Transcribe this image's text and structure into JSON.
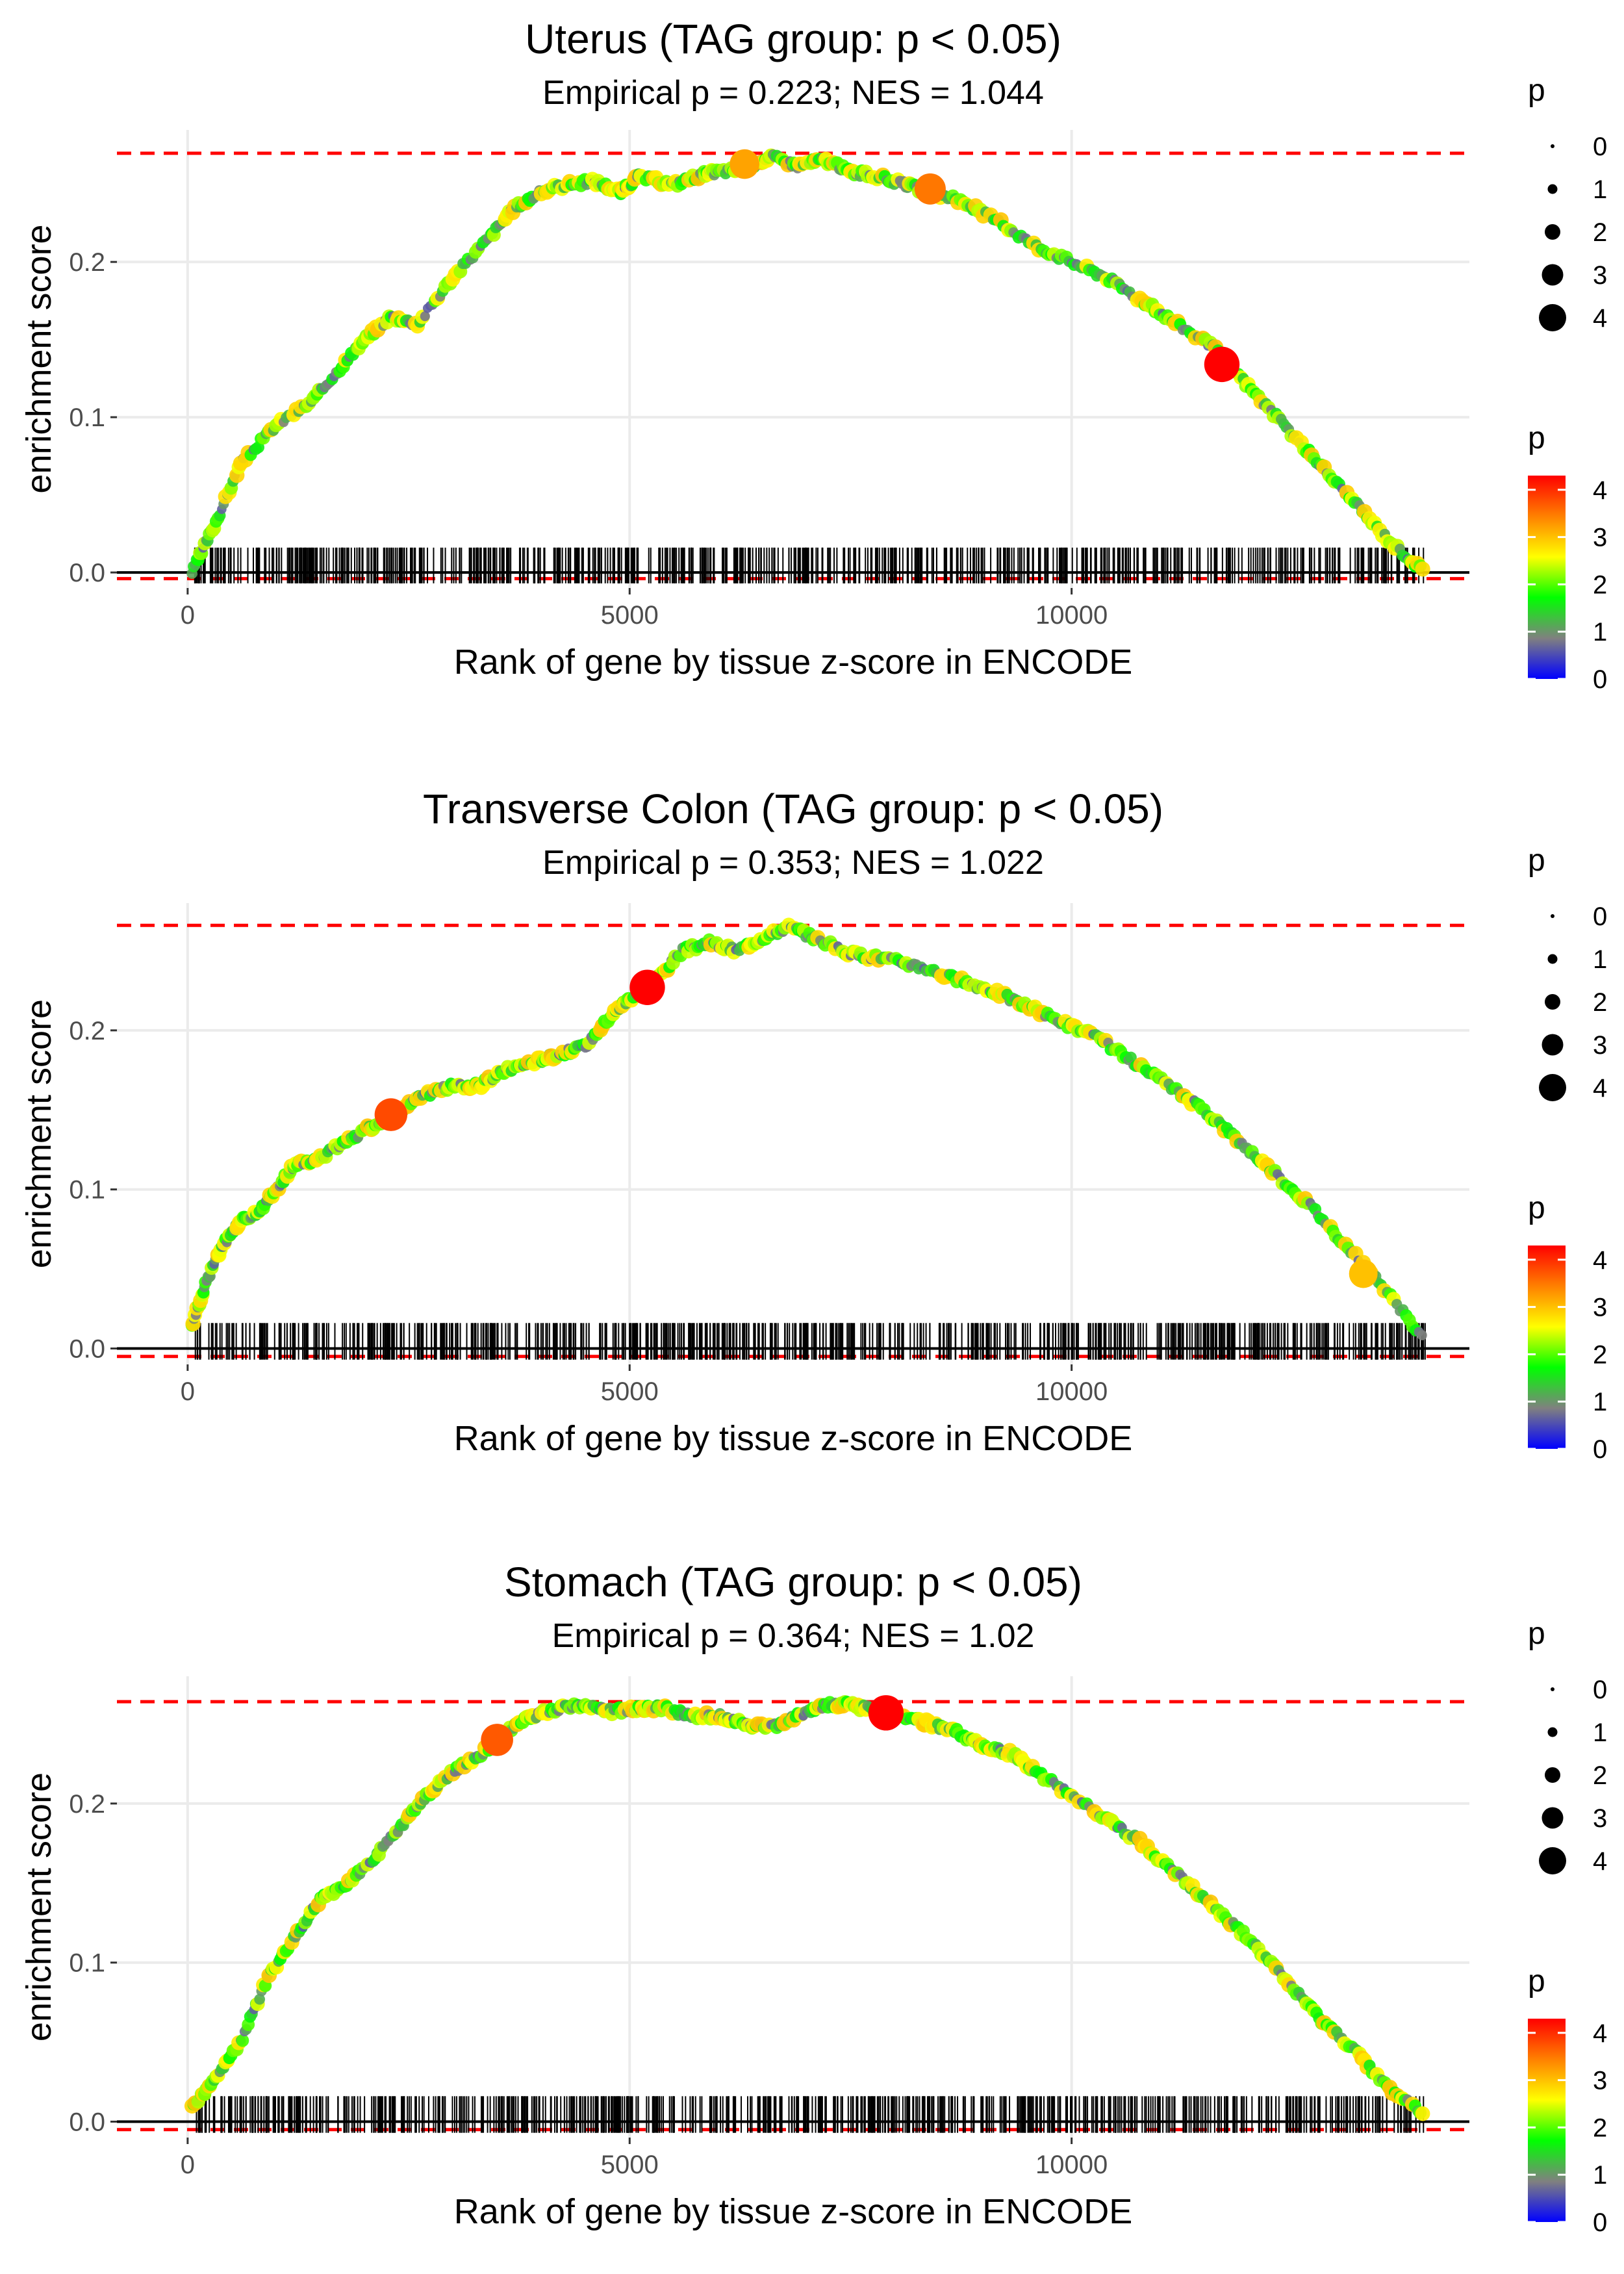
{
  "figure": {
    "title": "GSEA enrichment plots by tissue"
  },
  "chart_data": [
    {
      "type": "line",
      "title": "Uterus (TAG group: p < 0.05)",
      "subtitle": "Empirical p = 0.223; NES = 1.044",
      "xlabel": "Rank of gene by tissue z-score in ENCODE",
      "ylabel": "enrichment score",
      "xlim": [
        -800,
        14500
      ],
      "ylim": [
        -0.01,
        0.285
      ],
      "x_ticks": [
        0,
        5000,
        10000
      ],
      "x_tick_labels": [
        "0",
        "5000",
        "10000"
      ],
      "y_ticks": [
        0.0,
        0.1,
        0.2
      ],
      "y_tick_labels": [
        "0.0",
        "0.1",
        "0.2"
      ],
      "grid": true,
      "max_es": 0.27,
      "min_es": -0.004,
      "x": [
        50,
        300,
        600,
        1000,
        1400,
        1700,
        2000,
        2300,
        2600,
        3000,
        3400,
        3700,
        4000,
        4300,
        4600,
        4900,
        5100,
        5500,
        5800,
        6000,
        6300,
        6600,
        6900,
        7200,
        7500,
        7800,
        8100,
        8400,
        8800,
        9200,
        9600,
        10000,
        10400,
        10800,
        11200,
        11600,
        12000,
        12400,
        12800,
        13200,
        13600,
        14000
      ],
      "y": [
        0.0,
        0.03,
        0.07,
        0.095,
        0.11,
        0.13,
        0.15,
        0.165,
        0.16,
        0.19,
        0.215,
        0.235,
        0.245,
        0.25,
        0.252,
        0.245,
        0.255,
        0.25,
        0.256,
        0.258,
        0.26,
        0.268,
        0.262,
        0.266,
        0.258,
        0.255,
        0.25,
        0.245,
        0.238,
        0.225,
        0.21,
        0.2,
        0.19,
        0.175,
        0.16,
        0.145,
        0.12,
        0.095,
        0.07,
        0.045,
        0.02,
        0.0
      ],
      "highlights": [
        {
          "x": 6300,
          "y": 0.263,
          "p": 3.2
        },
        {
          "x": 8400,
          "y": 0.247,
          "p": 3.5
        },
        {
          "x": 11700,
          "y": 0.134,
          "p": 4.3
        }
      ],
      "hits_range": [
        80,
        14000
      ],
      "hits_count": 700,
      "legend_size": {
        "title": "p",
        "levels": [
          "0",
          "1",
          "2",
          "3",
          "4"
        ]
      },
      "legend_color": {
        "title": "p",
        "ticks": [
          "0",
          "1",
          "2",
          "3",
          "4"
        ],
        "range": [
          0,
          4.3
        ]
      }
    },
    {
      "type": "line",
      "title": "Transverse Colon (TAG group: p < 0.05)",
      "subtitle": "Empirical p = 0.353; NES = 1.022",
      "xlabel": "Rank of gene by tissue z-score in ENCODE",
      "ylabel": "enrichment score",
      "xlim": [
        -800,
        14500
      ],
      "ylim": [
        -0.01,
        0.28
      ],
      "x_ticks": [
        0,
        5000,
        10000
      ],
      "x_tick_labels": [
        "0",
        "5000",
        "10000"
      ],
      "y_ticks": [
        0.0,
        0.1,
        0.2
      ],
      "y_tick_labels": [
        "0.0",
        "0.1",
        "0.2"
      ],
      "grid": true,
      "max_es": 0.266,
      "min_es": -0.005,
      "x": [
        50,
        200,
        400,
        600,
        800,
        1000,
        1200,
        1500,
        1800,
        2100,
        2400,
        2700,
        3000,
        3300,
        3600,
        3900,
        4200,
        4500,
        4800,
        5000,
        5300,
        5600,
        5900,
        6200,
        6500,
        6800,
        7100,
        7500,
        7900,
        8300,
        8700,
        9100,
        9500,
        9900,
        10300,
        10700,
        11100,
        11500,
        11900,
        12300,
        12700,
        13100,
        13500,
        14000
      ],
      "y": [
        0.015,
        0.04,
        0.065,
        0.08,
        0.085,
        0.1,
        0.115,
        0.12,
        0.13,
        0.14,
        0.15,
        0.16,
        0.165,
        0.165,
        0.175,
        0.18,
        0.185,
        0.19,
        0.21,
        0.22,
        0.232,
        0.25,
        0.255,
        0.25,
        0.258,
        0.265,
        0.258,
        0.248,
        0.245,
        0.24,
        0.232,
        0.225,
        0.215,
        0.205,
        0.195,
        0.18,
        0.165,
        0.15,
        0.13,
        0.11,
        0.09,
        0.065,
        0.04,
        0.005
      ],
      "highlights": [
        {
          "x": 2300,
          "y": 0.147,
          "p": 3.8
        },
        {
          "x": 5200,
          "y": 0.227,
          "p": 4.3
        },
        {
          "x": 13300,
          "y": 0.047,
          "p": 3.0
        }
      ],
      "hits_range": [
        80,
        14000
      ],
      "hits_count": 750,
      "legend_size": {
        "title": "p",
        "levels": [
          "0",
          "1",
          "2",
          "3",
          "4"
        ]
      },
      "legend_color": {
        "title": "p",
        "ticks": [
          "0",
          "1",
          "2",
          "3",
          "4"
        ],
        "range": [
          0,
          4.3
        ]
      }
    },
    {
      "type": "line",
      "title": "Stomach (TAG group: p < 0.05)",
      "subtitle": "Empirical p = 0.364; NES = 1.02",
      "xlabel": "Rank of gene by tissue z-score in ENCODE",
      "ylabel": "enrichment score",
      "xlim": [
        -800,
        14500
      ],
      "ylim": [
        -0.01,
        0.28
      ],
      "x_ticks": [
        0,
        5000,
        10000
      ],
      "x_tick_labels": [
        "0",
        "5000",
        "10000"
      ],
      "y_ticks": [
        0.0,
        0.1,
        0.2
      ],
      "y_tick_labels": [
        "0.0",
        "0.1",
        "0.2"
      ],
      "grid": true,
      "max_es": 0.264,
      "min_es": -0.005,
      "x": [
        50,
        300,
        600,
        900,
        1200,
        1500,
        1800,
        2100,
        2400,
        2700,
        3000,
        3300,
        3600,
        3900,
        4200,
        4500,
        4800,
        5100,
        5400,
        5700,
        6000,
        6300,
        6600,
        6900,
        7200,
        7500,
        7800,
        8100,
        8400,
        8700,
        9000,
        9300,
        9600,
        10000,
        10400,
        10800,
        11200,
        11600,
        12000,
        12400,
        12800,
        13200,
        13600,
        14000
      ],
      "y": [
        0.01,
        0.025,
        0.05,
        0.09,
        0.115,
        0.14,
        0.15,
        0.165,
        0.185,
        0.205,
        0.22,
        0.23,
        0.245,
        0.255,
        0.26,
        0.262,
        0.258,
        0.26,
        0.26,
        0.255,
        0.255,
        0.25,
        0.248,
        0.255,
        0.262,
        0.262,
        0.258,
        0.255,
        0.25,
        0.245,
        0.235,
        0.232,
        0.22,
        0.205,
        0.19,
        0.175,
        0.155,
        0.135,
        0.115,
        0.09,
        0.065,
        0.045,
        0.02,
        0.005
      ],
      "highlights": [
        {
          "x": 3500,
          "y": 0.24,
          "p": 3.7
        },
        {
          "x": 7900,
          "y": 0.257,
          "p": 4.3
        }
      ],
      "hits_range": [
        80,
        14000
      ],
      "hits_count": 720,
      "legend_size": {
        "title": "p",
        "levels": [
          "0",
          "1",
          "2",
          "3",
          "4"
        ]
      },
      "legend_color": {
        "title": "p",
        "ticks": [
          "0",
          "1",
          "2",
          "3",
          "4"
        ],
        "range": [
          0,
          4.3
        ]
      }
    }
  ],
  "colors": {
    "grid": "#ebebeb",
    "max_line": "#ff0000",
    "baseline": "#000000",
    "hit": "#000000",
    "scale": [
      "#0000ff",
      "#808080",
      "#00ff00",
      "#ffff00",
      "#ff8000",
      "#ff0000"
    ]
  }
}
